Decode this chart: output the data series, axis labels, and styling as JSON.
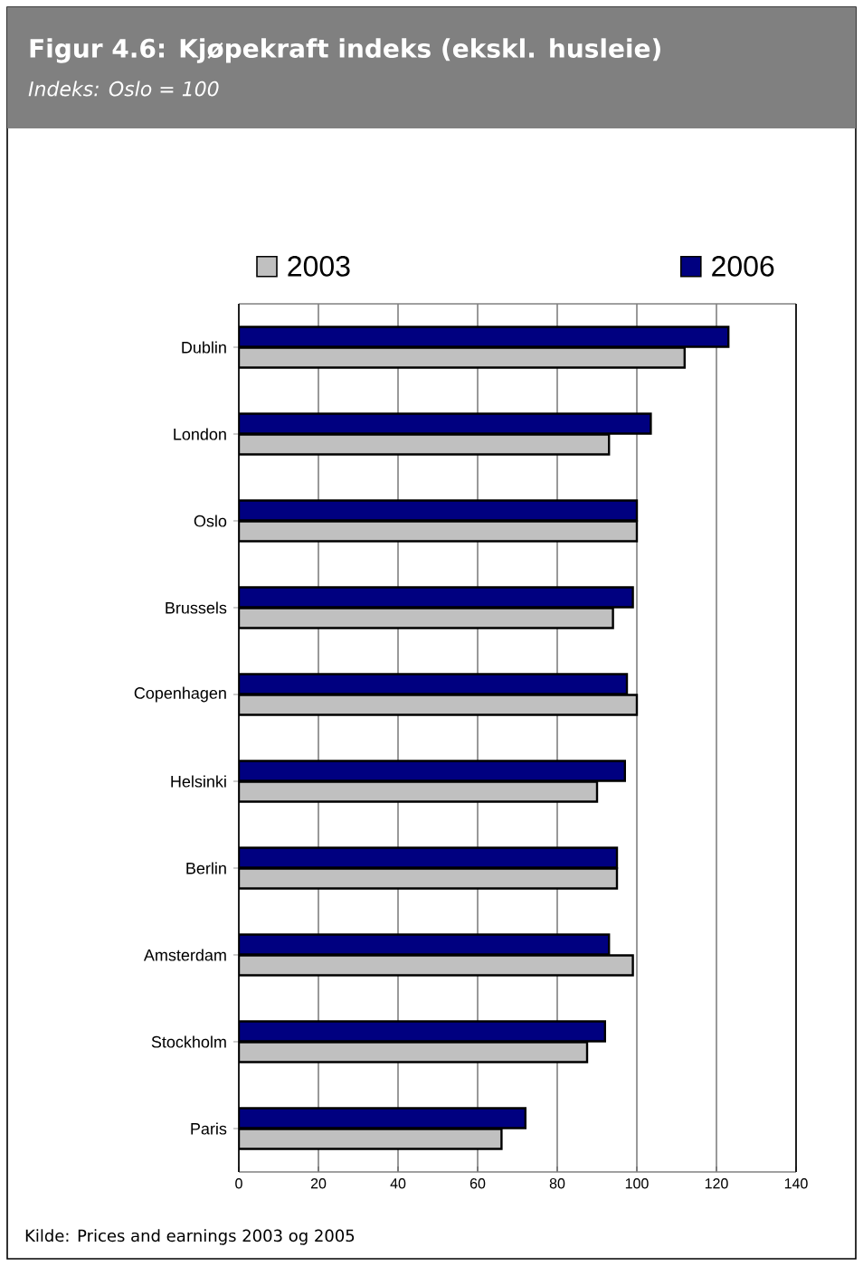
{
  "chart_data": {
    "type": "bar",
    "orientation": "horizontal",
    "title": "Figur 4.6: Kjøpekraft indeks (ekskl. husleie)",
    "subtitle": "Indeks: Oslo = 100",
    "categories": [
      "Dublin",
      "London",
      "Oslo",
      "Brussels",
      "Copenhagen",
      "Helsinki",
      "Berlin",
      "Amsterdam",
      "Stockholm",
      "Paris"
    ],
    "series": [
      {
        "name": "2003",
        "color": "#c0c0c0",
        "values": [
          112,
          93,
          100,
          94,
          100,
          90,
          95,
          99,
          87.5,
          66
        ]
      },
      {
        "name": "2006",
        "color": "#000080",
        "values": [
          123,
          103.5,
          100,
          99,
          97.5,
          97,
          95,
          93,
          92,
          72
        ]
      }
    ],
    "xlim": [
      0,
      140
    ],
    "xticks": [
      0,
      20,
      40,
      60,
      80,
      100,
      120,
      140
    ],
    "grid": "x",
    "legend": "top",
    "annotations": [
      "Kilde: Prices and earnings 2003 og  2005"
    ]
  }
}
